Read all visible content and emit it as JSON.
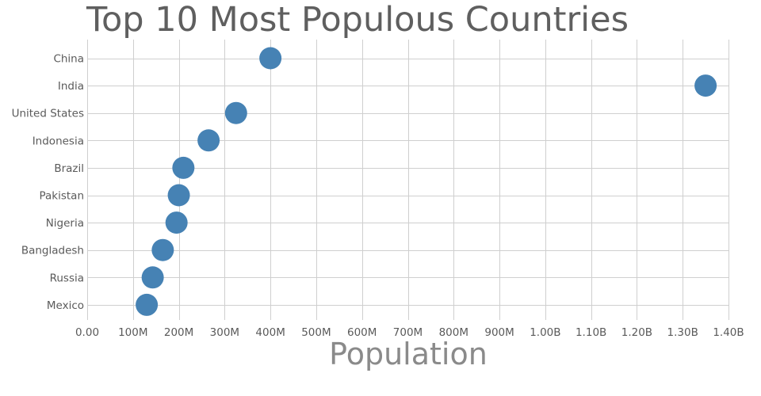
{
  "chart_data": {
    "type": "scatter",
    "title": "Top 10 Most Populous Countries",
    "xlabel": "Population",
    "ylabel": "",
    "xlim": [
      0,
      1400000000
    ],
    "x_ticks": [
      0,
      100000000,
      200000000,
      300000000,
      400000000,
      500000000,
      600000000,
      700000000,
      800000000,
      900000000,
      1000000000,
      1100000000,
      1200000000,
      1300000000,
      1400000000
    ],
    "x_tick_labels": [
      "0.00",
      "100M",
      "200M",
      "300M",
      "400M",
      "500M",
      "600M",
      "700M",
      "800M",
      "900M",
      "1.00B",
      "1.10B",
      "1.20B",
      "1.30B",
      "1.40B"
    ],
    "categories": [
      "China",
      "India",
      "United States",
      "Indonesia",
      "Brazil",
      "Pakistan",
      "Nigeria",
      "Bangladesh",
      "Russia",
      "Mexico"
    ],
    "values": [
      400000000,
      1350000000,
      325000000,
      265000000,
      210000000,
      200000000,
      195000000,
      165000000,
      143000000,
      130000000
    ],
    "grid": true,
    "marker_color": "#4682b4"
  }
}
